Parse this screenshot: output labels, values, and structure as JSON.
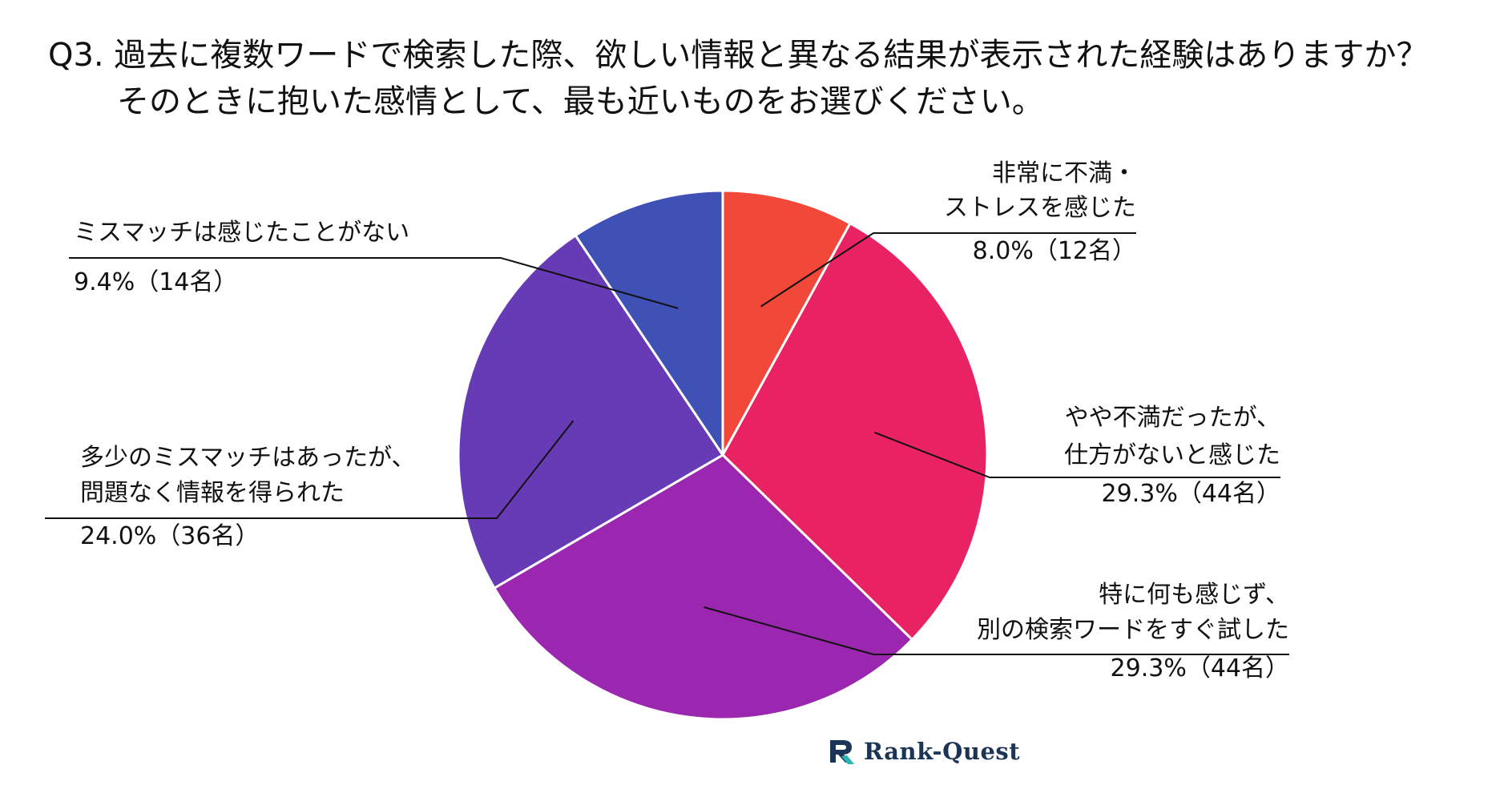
{
  "title": {
    "line1": "Q3. 過去に複数ワードで検索した際、欲しい情報と異なる結果が表示された経験はありますか？",
    "line2": "そのときに抱いた感情として、最も近いものをお選びください。"
  },
  "logo": {
    "text": "Rank-Quest",
    "icon": "rank-quest-logo-icon",
    "color": "#1b3556",
    "accent": "#2bb5b0"
  },
  "chart_data": {
    "type": "pie",
    "unit": "%",
    "start_angle": "12 o'clock",
    "direction": "clockwise",
    "slices": [
      {
        "label_lines": [
          "非常に不満・",
          "ストレスを感じた"
        ],
        "value": 8.0,
        "value_text": "8.0%（12名）",
        "count": 12,
        "color": "#f2483a",
        "label_side": "right"
      },
      {
        "label_lines": [
          "やや不満だったが、",
          "仕方がないと感じた"
        ],
        "value": 29.3,
        "value_text": "29.3%（44名）",
        "count": 44,
        "color": "#e92264",
        "label_side": "right"
      },
      {
        "label_lines": [
          "特に何も感じず、",
          "別の検索ワードをすぐ試した"
        ],
        "value": 29.3,
        "value_text": "29.3%（44名）",
        "count": 44,
        "color": "#9b27b0",
        "label_side": "right"
      },
      {
        "label_lines": [
          "多少のミスマッチはあったが、",
          "問題なく情報を得られた"
        ],
        "value": 24.0,
        "value_text": "24.0%（36名）",
        "count": 36,
        "color": "#673bb6",
        "label_side": "left"
      },
      {
        "label_lines": [
          "ミスマッチは感じたことがない"
        ],
        "value": 9.4,
        "value_text": "9.4%（14名）",
        "count": 14,
        "color": "#3f51b5",
        "label_side": "left"
      }
    ]
  }
}
